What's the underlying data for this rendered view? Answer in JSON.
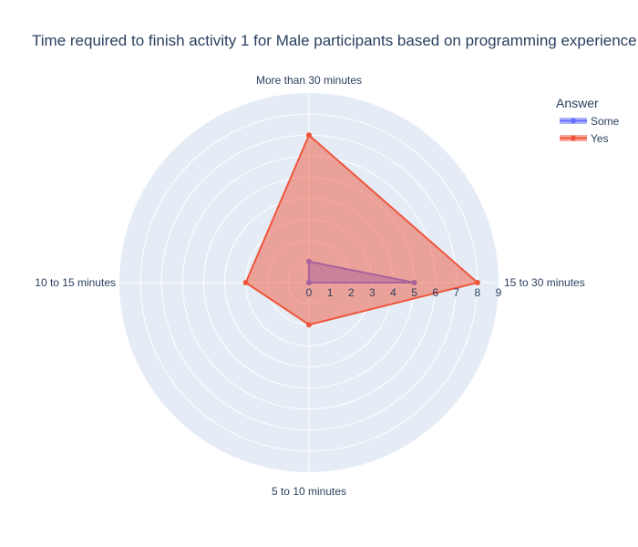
{
  "chart_data": {
    "type": "radar",
    "title": "Time required to finish activity 1 for Male participants based  on programming experience",
    "theta": [
      "15 to 30 minutes",
      "More than 30 minutes",
      "10 to 15 minutes",
      "5 to 10 minutes"
    ],
    "radial_range": [
      0,
      9
    ],
    "radial_ticks": [
      "0",
      "1",
      "2",
      "3",
      "4",
      "5",
      "6",
      "7",
      "8",
      "9"
    ],
    "legend": {
      "title": "Answer",
      "placement": "top-right"
    },
    "grid": true,
    "series": [
      {
        "name": "Some",
        "color": "#636efa",
        "values": [
          5,
          1,
          0,
          0
        ]
      },
      {
        "name": "Yes",
        "color": "#ef553b",
        "values": [
          8,
          7,
          3,
          2
        ]
      }
    ]
  }
}
